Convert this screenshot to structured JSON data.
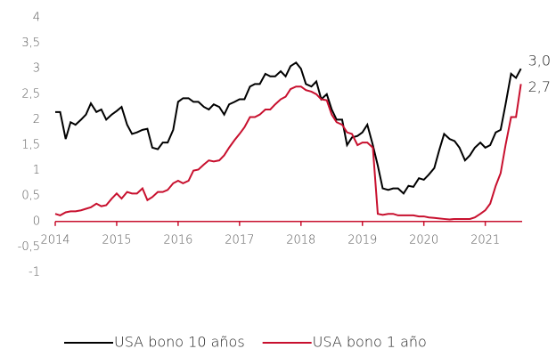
{
  "chart_data": {
    "type": "line",
    "x": [
      2014,
      2014.08,
      2014.17,
      2014.25,
      2014.33,
      2014.42,
      2014.5,
      2014.58,
      2014.67,
      2014.75,
      2014.83,
      2014.92,
      2015,
      2015.08,
      2015.17,
      2015.25,
      2015.33,
      2015.42,
      2015.5,
      2015.58,
      2015.67,
      2015.75,
      2015.83,
      2015.92,
      2016,
      2016.08,
      2016.17,
      2016.25,
      2016.33,
      2016.42,
      2016.5,
      2016.58,
      2016.67,
      2016.75,
      2016.83,
      2016.92,
      2017,
      2017.08,
      2017.17,
      2017.25,
      2017.33,
      2017.42,
      2017.5,
      2017.58,
      2017.67,
      2017.75,
      2017.83,
      2017.92,
      2018,
      2018.08,
      2018.17,
      2018.25,
      2018.33,
      2018.42,
      2018.5,
      2018.58,
      2018.67,
      2018.75,
      2018.83,
      2018.92,
      2019,
      2019.08,
      2019.17,
      2019.25,
      2019.33,
      2019.42,
      2019.5,
      2019.58,
      2019.67,
      2019.75,
      2019.83,
      2019.92,
      2020,
      2020.08,
      2020.17,
      2020.25,
      2020.33,
      2020.42,
      2020.5,
      2020.58,
      2020.67,
      2020.75,
      2020.83,
      2020.92,
      2021,
      2021.08,
      2021.17,
      2021.25,
      2021.33,
      2021.42,
      2021.5,
      2021.58
    ],
    "series": [
      {
        "name": "USA bono 10 años",
        "color": "#000000",
        "end_label": "3,0",
        "values": [
          2.15,
          2.15,
          1.62,
          1.95,
          1.9,
          2.0,
          2.1,
          2.32,
          2.15,
          2.2,
          2.0,
          2.1,
          2.17,
          2.25,
          1.9,
          1.72,
          1.75,
          1.8,
          1.82,
          1.45,
          1.42,
          1.55,
          1.55,
          1.8,
          2.35,
          2.42,
          2.42,
          2.35,
          2.35,
          2.25,
          2.2,
          2.3,
          2.25,
          2.1,
          2.3,
          2.35,
          2.4,
          2.4,
          2.65,
          2.7,
          2.7,
          2.9,
          2.85,
          2.85,
          2.95,
          2.85,
          3.05,
          3.12,
          3.0,
          2.7,
          2.65,
          2.75,
          2.4,
          2.5,
          2.2,
          2.0,
          2.0,
          1.5,
          1.65,
          1.68,
          1.75,
          1.9,
          1.5,
          1.1,
          0.65,
          0.62,
          0.65,
          0.65,
          0.55,
          0.7,
          0.68,
          0.85,
          0.82,
          0.92,
          1.05,
          1.4,
          1.72,
          1.62,
          1.58,
          1.45,
          1.2,
          1.3,
          1.45,
          1.55,
          1.45,
          1.5,
          1.75,
          1.8,
          2.3,
          2.9,
          2.82,
          3.0
        ]
      },
      {
        "name": "USA bono 1 año",
        "color": "#c8102e",
        "end_label": "2,7",
        "values": [
          0.15,
          0.12,
          0.18,
          0.2,
          0.2,
          0.22,
          0.25,
          0.28,
          0.35,
          0.3,
          0.32,
          0.45,
          0.55,
          0.45,
          0.58,
          0.55,
          0.55,
          0.65,
          0.42,
          0.48,
          0.58,
          0.58,
          0.62,
          0.75,
          0.8,
          0.75,
          0.8,
          1.0,
          1.02,
          1.12,
          1.2,
          1.18,
          1.2,
          1.3,
          1.45,
          1.6,
          1.72,
          1.85,
          2.05,
          2.05,
          2.1,
          2.2,
          2.2,
          2.3,
          2.4,
          2.45,
          2.6,
          2.65,
          2.65,
          2.58,
          2.55,
          2.5,
          2.4,
          2.38,
          2.1,
          1.95,
          1.9,
          1.75,
          1.72,
          1.5,
          1.55,
          1.55,
          1.45,
          0.15,
          0.13,
          0.15,
          0.15,
          0.12,
          0.12,
          0.12,
          0.12,
          0.1,
          0.1,
          0.08,
          0.07,
          0.06,
          0.05,
          0.04,
          0.05,
          0.05,
          0.05,
          0.05,
          0.08,
          0.15,
          0.22,
          0.35,
          0.7,
          0.95,
          1.5,
          2.05,
          2.05,
          2.7
        ]
      }
    ],
    "xlim": [
      2014,
      2021.6
    ],
    "xticks": [
      2014,
      2015,
      2016,
      2017,
      2018,
      2019,
      2020,
      2021
    ],
    "ylim": [
      -1,
      4
    ],
    "yticks": [
      {
        "value": -1,
        "label": "-1"
      },
      {
        "value": -0.5,
        "label": "-0,5"
      },
      0,
      {
        "value": 0.5,
        "label": "0,5"
      },
      1,
      {
        "value": 1.5,
        "label": "1,5"
      },
      2,
      {
        "value": 2.5,
        "label": "2,5"
      },
      3,
      {
        "value": 3.5,
        "label": "3,5"
      },
      4
    ],
    "axis_color": "#c8102e",
    "grid": false,
    "legend": "bottom"
  }
}
